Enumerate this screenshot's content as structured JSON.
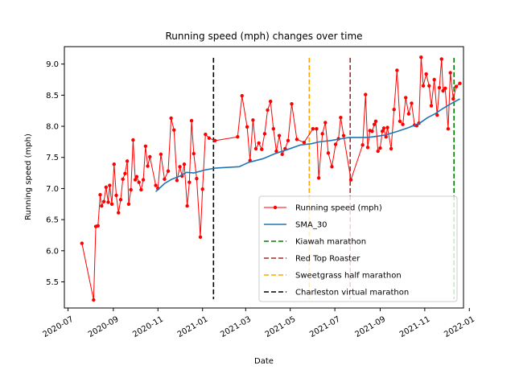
{
  "chart_data": {
    "type": "line",
    "title": "Running speed (mph) changes over time",
    "xlabel": "Date",
    "ylabel": "Running speed (mph)",
    "xlim": [
      "2020-06-26",
      "2021-12-24"
    ],
    "ylim": [
      5.08,
      9.28
    ],
    "xticks": [
      {
        "date": "2020-07-01",
        "label": "2020-07"
      },
      {
        "date": "2020-09-01",
        "label": "2020-09"
      },
      {
        "date": "2020-11-01",
        "label": "2020-11"
      },
      {
        "date": "2021-01-01",
        "label": "2021-01"
      },
      {
        "date": "2021-03-01",
        "label": "2021-03"
      },
      {
        "date": "2021-05-01",
        "label": "2021-05"
      },
      {
        "date": "2021-07-01",
        "label": "2021-07"
      },
      {
        "date": "2021-09-01",
        "label": "2021-09"
      },
      {
        "date": "2021-11-01",
        "label": "2021-11"
      },
      {
        "date": "2022-01-01",
        "label": "2022-01"
      }
    ],
    "yticks": [
      "5.5",
      "6.0",
      "6.5",
      "7.0",
      "7.5",
      "8.0",
      "8.5",
      "9.0"
    ],
    "legend_position": "lower right",
    "series": [
      {
        "name": "Running speed (mph)",
        "color": "#ff0000",
        "style": "line-with-dot-markers",
        "points": [
          [
            "2020-07-20",
            6.12
          ],
          [
            "2020-08-05",
            5.21
          ],
          [
            "2020-08-08",
            6.39
          ],
          [
            "2020-08-11",
            6.4
          ],
          [
            "2020-08-14",
            6.9
          ],
          [
            "2020-08-16",
            6.72
          ],
          [
            "2020-08-19",
            6.79
          ],
          [
            "2020-08-22",
            7.02
          ],
          [
            "2020-08-25",
            6.78
          ],
          [
            "2020-08-27",
            7.05
          ],
          [
            "2020-08-30",
            6.75
          ],
          [
            "2020-09-02",
            7.39
          ],
          [
            "2020-09-05",
            6.89
          ],
          [
            "2020-09-08",
            6.61
          ],
          [
            "2020-09-11",
            6.82
          ],
          [
            "2020-09-14",
            7.15
          ],
          [
            "2020-09-17",
            7.24
          ],
          [
            "2020-09-20",
            7.44
          ],
          [
            "2020-09-22",
            6.75
          ],
          [
            "2020-09-25",
            6.98
          ],
          [
            "2020-09-28",
            7.78
          ],
          [
            "2020-10-01",
            7.14
          ],
          [
            "2020-10-03",
            7.19
          ],
          [
            "2020-10-06",
            7.1
          ],
          [
            "2020-10-09",
            6.98
          ],
          [
            "2020-10-12",
            7.14
          ],
          [
            "2020-10-15",
            7.68
          ],
          [
            "2020-10-18",
            7.36
          ],
          [
            "2020-10-21",
            7.51
          ],
          [
            "2020-10-29",
            7.05
          ],
          [
            "2020-11-01",
            7.0
          ],
          [
            "2020-11-05",
            7.55
          ],
          [
            "2020-11-10",
            7.15
          ],
          [
            "2020-11-15",
            7.28
          ],
          [
            "2020-11-19",
            8.13
          ],
          [
            "2020-11-23",
            7.94
          ],
          [
            "2020-11-27",
            7.13
          ],
          [
            "2020-12-01",
            7.35
          ],
          [
            "2020-12-04",
            7.2
          ],
          [
            "2020-12-07",
            7.39
          ],
          [
            "2020-12-11",
            6.72
          ],
          [
            "2020-12-14",
            7.1
          ],
          [
            "2020-12-17",
            8.09
          ],
          [
            "2020-12-20",
            7.56
          ],
          [
            "2020-12-24",
            7.16
          ],
          [
            "2020-12-29",
            6.22
          ],
          [
            "2021-01-01",
            6.99
          ],
          [
            "2021-01-05",
            7.87
          ],
          [
            "2021-01-10",
            7.81
          ],
          [
            "2021-01-18",
            7.77
          ],
          [
            "2021-02-18",
            7.83
          ],
          [
            "2021-02-24",
            8.49
          ],
          [
            "2021-03-03",
            7.99
          ],
          [
            "2021-03-07",
            7.45
          ],
          [
            "2021-03-11",
            8.1
          ],
          [
            "2021-03-15",
            7.64
          ],
          [
            "2021-03-19",
            7.73
          ],
          [
            "2021-03-23",
            7.63
          ],
          [
            "2021-03-27",
            7.88
          ],
          [
            "2021-03-31",
            8.26
          ],
          [
            "2021-04-04",
            8.4
          ],
          [
            "2021-04-08",
            7.96
          ],
          [
            "2021-04-12",
            7.6
          ],
          [
            "2021-04-16",
            7.85
          ],
          [
            "2021-04-20",
            7.55
          ],
          [
            "2021-04-24",
            7.64
          ],
          [
            "2021-04-28",
            7.77
          ],
          [
            "2021-05-03",
            8.36
          ],
          [
            "2021-05-10",
            7.79
          ],
          [
            "2021-05-20",
            7.74
          ],
          [
            "2021-06-01",
            7.96
          ],
          [
            "2021-06-06",
            7.96
          ],
          [
            "2021-06-09",
            7.17
          ],
          [
            "2021-06-14",
            7.88
          ],
          [
            "2021-06-18",
            8.06
          ],
          [
            "2021-06-22",
            7.57
          ],
          [
            "2021-06-27",
            7.35
          ],
          [
            "2021-07-02",
            7.71
          ],
          [
            "2021-07-06",
            7.8
          ],
          [
            "2021-07-09",
            8.14
          ],
          [
            "2021-07-13",
            7.85
          ],
          [
            "2021-07-23",
            7.14
          ],
          [
            "2021-08-08",
            7.7
          ],
          [
            "2021-08-12",
            8.51
          ],
          [
            "2021-08-15",
            7.66
          ],
          [
            "2021-08-18",
            7.93
          ],
          [
            "2021-08-21",
            7.92
          ],
          [
            "2021-08-24",
            8.03
          ],
          [
            "2021-08-26",
            8.08
          ],
          [
            "2021-08-29",
            7.6
          ],
          [
            "2021-09-01",
            7.65
          ],
          [
            "2021-09-04",
            7.92
          ],
          [
            "2021-09-06",
            7.97
          ],
          [
            "2021-09-09",
            7.83
          ],
          [
            "2021-09-11",
            7.98
          ],
          [
            "2021-09-16",
            7.64
          ],
          [
            "2021-09-20",
            8.27
          ],
          [
            "2021-09-24",
            8.9
          ],
          [
            "2021-09-28",
            8.08
          ],
          [
            "2021-10-02",
            8.03
          ],
          [
            "2021-10-06",
            8.46
          ],
          [
            "2021-10-10",
            8.2
          ],
          [
            "2021-10-14",
            8.37
          ],
          [
            "2021-10-18",
            8.02
          ],
          [
            "2021-10-21",
            8.01
          ],
          [
            "2021-10-24",
            8.05
          ],
          [
            "2021-10-27",
            9.11
          ],
          [
            "2021-10-30",
            8.65
          ],
          [
            "2021-11-03",
            8.84
          ],
          [
            "2021-11-07",
            8.65
          ],
          [
            "2021-11-10",
            8.33
          ],
          [
            "2021-11-14",
            8.75
          ],
          [
            "2021-11-18",
            8.18
          ],
          [
            "2021-11-21",
            8.62
          ],
          [
            "2021-11-24",
            9.08
          ],
          [
            "2021-11-26",
            8.57
          ],
          [
            "2021-11-29",
            8.61
          ],
          [
            "2021-12-03",
            7.96
          ],
          [
            "2021-12-06",
            8.86
          ],
          [
            "2021-12-10",
            8.44
          ],
          [
            "2021-12-14",
            8.64
          ],
          [
            "2021-12-19",
            8.69
          ]
        ]
      },
      {
        "name": "SMA_30",
        "color": "#1f77b4",
        "style": "line",
        "points": [
          [
            "2020-10-29",
            6.95
          ],
          [
            "2020-11-10",
            7.08
          ],
          [
            "2020-11-20",
            7.15
          ],
          [
            "2020-12-01",
            7.2
          ],
          [
            "2020-12-10",
            7.26
          ],
          [
            "2020-12-20",
            7.25
          ],
          [
            "2021-01-05",
            7.3
          ],
          [
            "2021-01-20",
            7.33
          ],
          [
            "2021-02-20",
            7.35
          ],
          [
            "2021-03-05",
            7.42
          ],
          [
            "2021-03-25",
            7.48
          ],
          [
            "2021-04-10",
            7.56
          ],
          [
            "2021-04-28",
            7.63
          ],
          [
            "2021-05-15",
            7.7
          ],
          [
            "2021-05-30",
            7.72
          ],
          [
            "2021-06-10",
            7.75
          ],
          [
            "2021-06-25",
            7.77
          ],
          [
            "2021-07-05",
            7.79
          ],
          [
            "2021-07-20",
            7.82
          ],
          [
            "2021-08-15",
            7.82
          ],
          [
            "2021-08-28",
            7.84
          ],
          [
            "2021-09-08",
            7.86
          ],
          [
            "2021-09-25",
            7.92
          ],
          [
            "2021-10-10",
            7.98
          ],
          [
            "2021-10-25",
            8.05
          ],
          [
            "2021-11-05",
            8.14
          ],
          [
            "2021-11-15",
            8.2
          ],
          [
            "2021-11-25",
            8.28
          ],
          [
            "2021-12-05",
            8.35
          ],
          [
            "2021-12-19",
            8.44
          ]
        ]
      }
    ],
    "vlines": [
      {
        "name": "Kiawah marathon",
        "date": "2021-12-11",
        "color": "#008000",
        "ymin": 5.22,
        "ymax": 9.1
      },
      {
        "name": "Red Top Roaster",
        "date": "2021-07-22",
        "color": "#a52a2a",
        "ymin": 5.22,
        "ymax": 9.1
      },
      {
        "name": "Sweetgrass half marathon",
        "date": "2021-05-27",
        "color": "#ffa500",
        "ymin": 5.22,
        "ymax": 9.1
      },
      {
        "name": "Charleston virtual marathon",
        "date": "2021-01-16",
        "color": "#000000",
        "ymin": 5.22,
        "ymax": 9.1
      }
    ]
  }
}
